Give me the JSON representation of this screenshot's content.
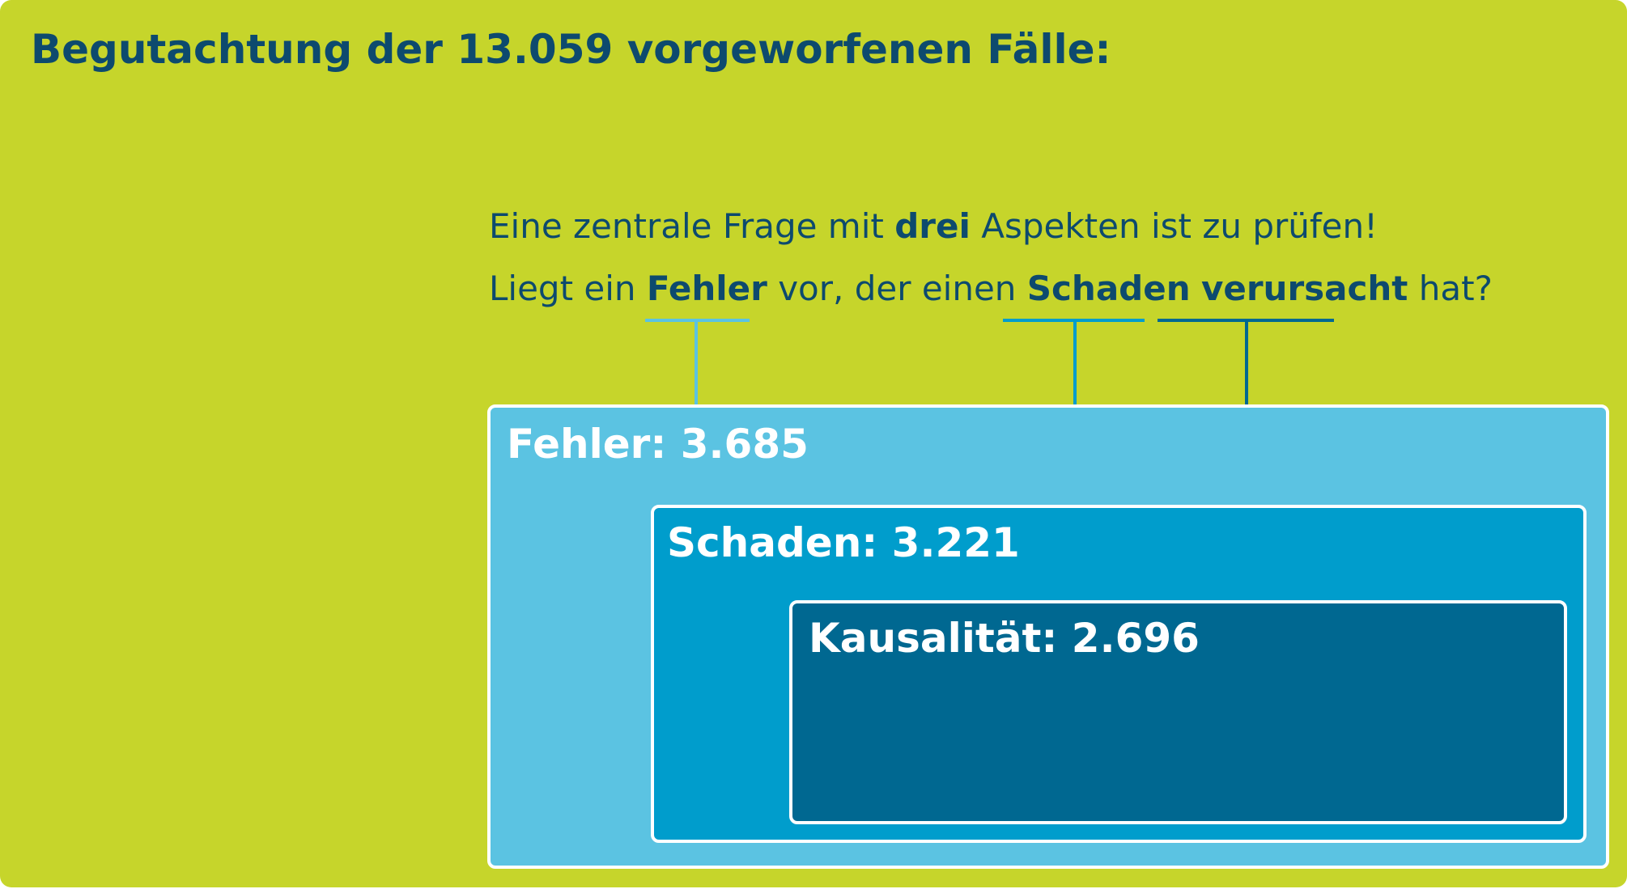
{
  "title": "Begutachtung der 13.059 vorgeworfenen Fälle:",
  "question": {
    "line1": {
      "before": "Eine zentrale Frage mit ",
      "bold": "drei",
      "after": " Aspekten ist zu prüfen!"
    },
    "line2": {
      "part1": "Liegt ein ",
      "word_fehler": "Fehler",
      "part2": " vor, der einen ",
      "word_schaden": "Schaden",
      "part3": " ",
      "word_verursacht": "verursacht",
      "part4": " hat?"
    }
  },
  "boxes": {
    "fehler": {
      "label": "Fehler: 3.685",
      "name": "Fehler",
      "value": 3685,
      "color": "#5bc3e2"
    },
    "schaden": {
      "label": "Schaden: 3.221",
      "name": "Schaden",
      "value": 3221,
      "color": "#009dcc"
    },
    "kausalitaet": {
      "label": "Kausalität: 2.696",
      "name": "Kausalität",
      "value": 2696,
      "color": "#006891"
    }
  },
  "colors": {
    "background": "#c6d52b",
    "text": "#0d4a6e",
    "fehler_line": "#5bc3e2",
    "schaden_line": "#009dcc",
    "kausalitaet_line": "#006891"
  }
}
